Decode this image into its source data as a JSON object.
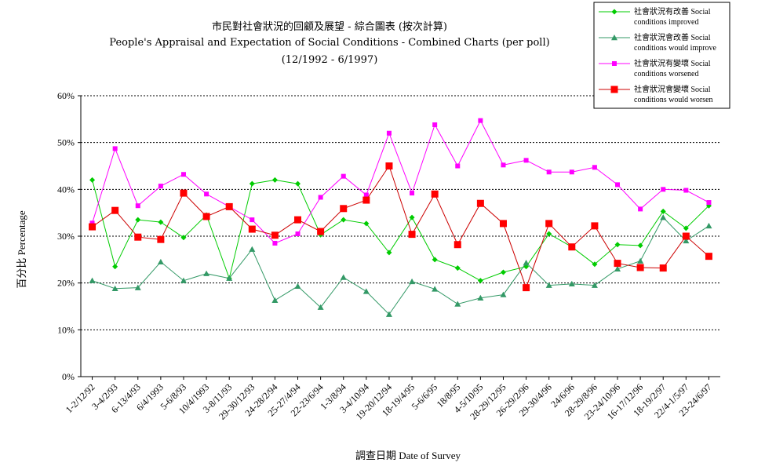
{
  "chart_data": {
    "type": "line",
    "title": "市民對社會狀況的回顧及展望 - 綜合圖表 (按次計算)",
    "subtitle": "People's Appraisal and Expectation of Social Conditions - Combined Charts  (per poll)",
    "period": "(12/1992 - 6/1997)",
    "xlabel": "調查日期 Date of Survey",
    "ylabel": "百分比 Percentage",
    "ylim": [
      0,
      60
    ],
    "yticks": [
      "0%",
      "10%",
      "20%",
      "30%",
      "40%",
      "50%",
      "60%"
    ],
    "grid": true,
    "legend_position": "top-right",
    "categories": [
      "1-2/12/92",
      "3-4/2/93",
      "6-13/4/93",
      "6/4/1993",
      "5-6/8/93",
      "10/4/1993",
      "3-8/11/93",
      "29-30/12/93",
      "24-28/2/94",
      "25-27/4/94",
      "22-23/6/94",
      "1-3/8/94",
      "3-4/10/94",
      "19-20/12/94",
      "18-19/4/95",
      "5-6/6/95",
      "18/8/95",
      "4-5/10/95",
      "28-29/12/95",
      "26-29/2/96",
      "29-30/4/96",
      "24/6/96",
      "28-29/8/96",
      "23-24/10/96",
      "16-17/12/96",
      "18-19/2/97",
      "22/4-1/5/97",
      "23-24/6/97"
    ],
    "xtick_labels": [
      "1-2/12/92",
      "3-4/2/93",
      "6-13/4/93",
      "6/4/1993",
      "5-6/8/93",
      "10/4/1993",
      "3-8/11/93",
      "29-30/12/93",
      "24-28/2/94",
      "25-27/4/94",
      "22-23/6/94",
      "1-3/8/94",
      "3-4/10/94",
      "19-20/12/94",
      "18-19/4/95",
      "5-6/6/95",
      "18/8/95",
      "4-5/10/95",
      "28-29/12/95",
      "26-29/2/96",
      "29-30/4/96",
      "24/6/96",
      "28-29/8/96",
      "23-24/10/96",
      "16-17/12/96",
      "18-19/2/97",
      "22/4-1/5/97",
      "23-24/6/97"
    ],
    "series": [
      {
        "name": "社會狀況有改善 Social conditions improved",
        "legend_lines": [
          "社會狀況有改善 Social",
          "conditions improved"
        ],
        "color": "#00cc00",
        "line_color": "#00cc00",
        "marker": "diamond",
        "values": [
          42,
          23.5,
          33.5,
          33,
          29.7,
          34.5,
          21,
          41.2,
          42,
          41.2,
          30.3,
          33.5,
          32.7,
          26.5,
          34,
          25,
          23.2,
          20.5,
          22.3,
          23.5,
          30.5,
          27.7,
          24,
          28.2,
          28,
          35.3,
          31.7,
          36.5
        ]
      },
      {
        "name": "社會狀況會改善 Social conditions would improve",
        "legend_lines": [
          "社會狀況會改善 Social",
          "conditions would improve"
        ],
        "color": "#339966",
        "line_color": "#339966",
        "marker": "triangle",
        "values": [
          20.5,
          18.8,
          19,
          24.5,
          20.5,
          22,
          21,
          27.2,
          16.3,
          19.3,
          14.8,
          21.2,
          18.2,
          13.3,
          20.3,
          18.7,
          15.5,
          16.8,
          17.5,
          24.3,
          19.5,
          19.8,
          19.5,
          23,
          24.7,
          34,
          29,
          32.2
        ]
      },
      {
        "name": "社會狀況有變壞 Social conditions worsened",
        "legend_lines": [
          "社會狀況有變壞 Social",
          "conditions worsened"
        ],
        "color": "#ff00ff",
        "line_color": "#ff00ff",
        "marker": "square-small",
        "values": [
          32.8,
          48.7,
          36.5,
          40.7,
          43.2,
          39,
          36.3,
          33.5,
          28.5,
          30.5,
          38.3,
          42.8,
          38.8,
          52,
          39.2,
          53.8,
          45,
          54.7,
          45.2,
          46.2,
          43.7,
          43.7,
          44.7,
          41,
          35.8,
          40,
          39.8,
          37.2
        ]
      },
      {
        "name": "社會狀況會變壞 Social conditions would worsen",
        "legend_lines": [
          "社會狀況會變壞 Social",
          "conditions would worsen"
        ],
        "color": "#ff0000",
        "line_color": "#cc0000",
        "marker": "square",
        "values": [
          32,
          35.5,
          29.8,
          29.3,
          39.2,
          34.2,
          36.3,
          31.5,
          30.2,
          33.5,
          31,
          35.9,
          37.7,
          45,
          30.4,
          39,
          28.2,
          37,
          32.7,
          19,
          32.7,
          27.7,
          32.2,
          24.2,
          23.3,
          23.2,
          30,
          25.7
        ]
      }
    ]
  }
}
